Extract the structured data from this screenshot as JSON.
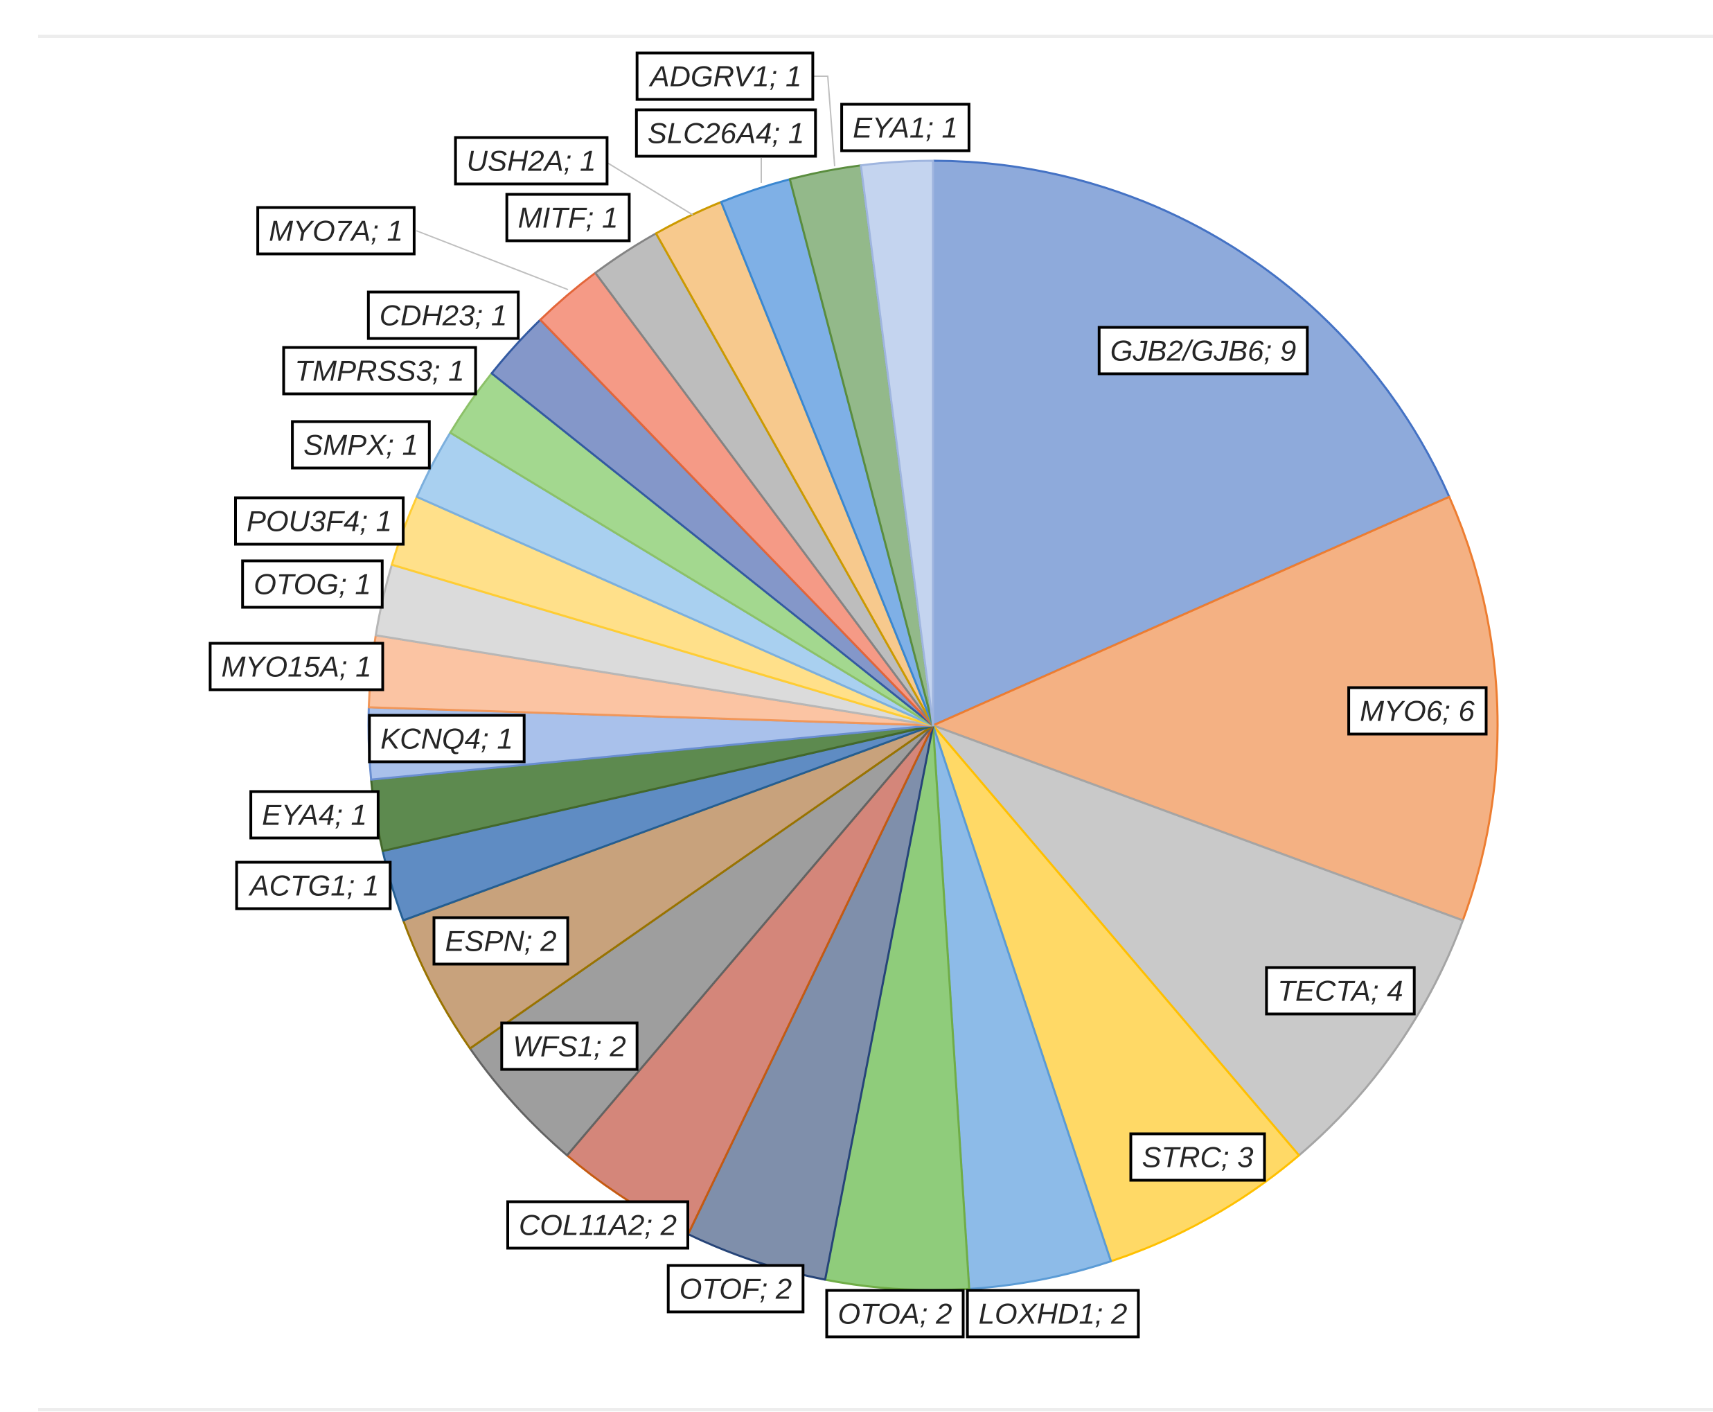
{
  "chart_data": {
    "type": "pie",
    "title": "",
    "start_angle_deg": 0,
    "direction": "clockwise",
    "legend": "none",
    "slices": [
      {
        "label": "GJB2/GJB6; 9",
        "name": "GJB2/GJB6",
        "value": 9,
        "fill": "#8eaadb",
        "stroke": "#4472c4"
      },
      {
        "label": "MYO6; 6",
        "name": "MYO6",
        "value": 6,
        "fill": "#f4b183",
        "stroke": "#ed7d31"
      },
      {
        "label": "TECTA; 4",
        "name": "TECTA",
        "value": 4,
        "fill": "#c9c9c9",
        "stroke": "#a5a5a5"
      },
      {
        "label": "STRC; 3",
        "name": "STRC",
        "value": 3,
        "fill": "#ffd966",
        "stroke": "#ffc000"
      },
      {
        "label": "LOXHD1; 2",
        "name": "LOXHD1",
        "value": 2,
        "fill": "#8dbbe8",
        "stroke": "#5b9bd5"
      },
      {
        "label": "OTOA; 2",
        "name": "OTOA",
        "value": 2,
        "fill": "#8fcc7b",
        "stroke": "#70ad47"
      },
      {
        "label": "OTOF; 2",
        "name": "OTOF",
        "value": 2,
        "fill": "#7f8fab",
        "stroke": "#264478"
      },
      {
        "label": "COL11A2; 2",
        "name": "COL11A2",
        "value": 2,
        "fill": "#d4867a",
        "stroke": "#c55a11"
      },
      {
        "label": "WFS1; 2",
        "name": "WFS1",
        "value": 2,
        "fill": "#9e9e9e",
        "stroke": "#636363"
      },
      {
        "label": "ESPN; 2",
        "name": "ESPN",
        "value": 2,
        "fill": "#c8a27c",
        "stroke": "#997300"
      },
      {
        "label": "ACTG1; 1",
        "name": "ACTG1",
        "value": 1,
        "fill": "#5f8cc3",
        "stroke": "#255e91"
      },
      {
        "label": "EYA4; 1",
        "name": "EYA4",
        "value": 1,
        "fill": "#5d8a4f",
        "stroke": "#43682b"
      },
      {
        "label": "KCNQ4; 1",
        "name": "KCNQ4",
        "value": 1,
        "fill": "#a9c1eb",
        "stroke": "#698ed0"
      },
      {
        "label": "MYO15A; 1",
        "name": "MYO15A",
        "value": 1,
        "fill": "#fbc4a3",
        "stroke": "#f1975a"
      },
      {
        "label": "OTOG; 1",
        "name": "OTOG",
        "value": 1,
        "fill": "#dbdbdb",
        "stroke": "#b7b7b7"
      },
      {
        "label": "POU3F4; 1",
        "name": "POU3F4",
        "value": 1,
        "fill": "#ffe08a",
        "stroke": "#ffcd33"
      },
      {
        "label": "SMPX; 1",
        "name": "SMPX",
        "value": 1,
        "fill": "#a9d0f0",
        "stroke": "#7cafdd"
      },
      {
        "label": "TMPRSS3; 1",
        "name": "TMPRSS3",
        "value": 1,
        "fill": "#a3d88f",
        "stroke": "#8cc168"
      },
      {
        "label": "CDH23; 1",
        "name": "CDH23",
        "value": 1,
        "fill": "#8497c9",
        "stroke": "#335aa1"
      },
      {
        "label": "MYO7A; 1",
        "name": "MYO7A",
        "value": 1,
        "fill": "#f59a86",
        "stroke": "#e3663a"
      },
      {
        "label": "MITF; 1",
        "name": "MITF",
        "value": 1,
        "fill": "#bdbdbd",
        "stroke": "#848484"
      },
      {
        "label": "USH2A; 1",
        "name": "USH2A",
        "value": 1,
        "fill": "#f7c98d",
        "stroke": "#cc9a00"
      },
      {
        "label": "SLC26A4; 1",
        "name": "SLC26A4",
        "value": 1,
        "fill": "#7fb0e6",
        "stroke": "#3a87d1"
      },
      {
        "label": "ADGRV1; 1",
        "name": "ADGRV1",
        "value": 1,
        "fill": "#93b98a",
        "stroke": "#5a8d3e"
      },
      {
        "label": "EYA1; 1",
        "name": "EYA1",
        "value": 1,
        "fill": "#c4d4ef",
        "stroke": "#9fb5df"
      }
    ]
  }
}
